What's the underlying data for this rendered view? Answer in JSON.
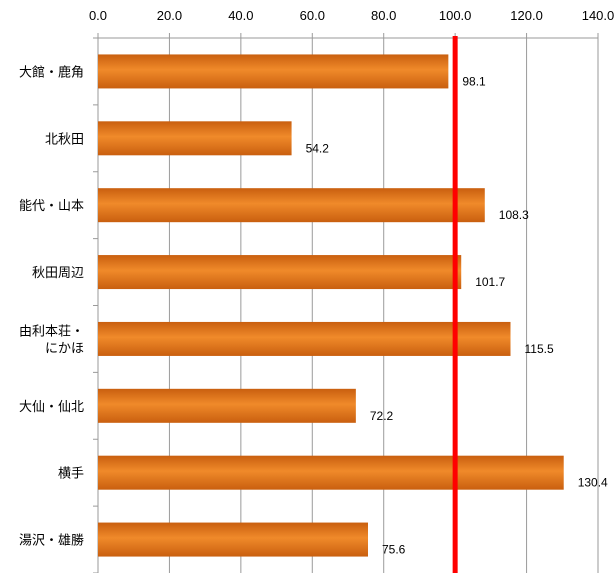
{
  "chart_data": {
    "type": "bar",
    "orientation": "horizontal",
    "categories": [
      [
        "大館・鹿角"
      ],
      [
        "北秋田"
      ],
      [
        "能代・山本"
      ],
      [
        "秋田周辺"
      ],
      [
        "由利本荘・",
        "にかほ"
      ],
      [
        "大仙・仙北"
      ],
      [
        "横手"
      ],
      [
        "湯沢・雄勝"
      ]
    ],
    "values": [
      98.1,
      54.2,
      108.3,
      101.7,
      115.5,
      72.2,
      130.4,
      75.6
    ],
    "value_labels": [
      "98.1",
      "54.2",
      "108.3",
      "101.7",
      "115.5",
      "72.2",
      "130.4",
      "75.6"
    ],
    "x_ticks": [
      "0.0",
      "20.0",
      "40.0",
      "60.0",
      "80.0",
      "100.0",
      "120.0",
      "140.0"
    ],
    "xlim": [
      0,
      140
    ],
    "x_axis_position": "top",
    "reference_line": {
      "value": 100,
      "color": "#ff0000"
    },
    "bar_color": "#c95f0f",
    "bar_highlight_color": "#f08a2a",
    "grid": true,
    "title": "",
    "xlabel": "",
    "ylabel": ""
  }
}
